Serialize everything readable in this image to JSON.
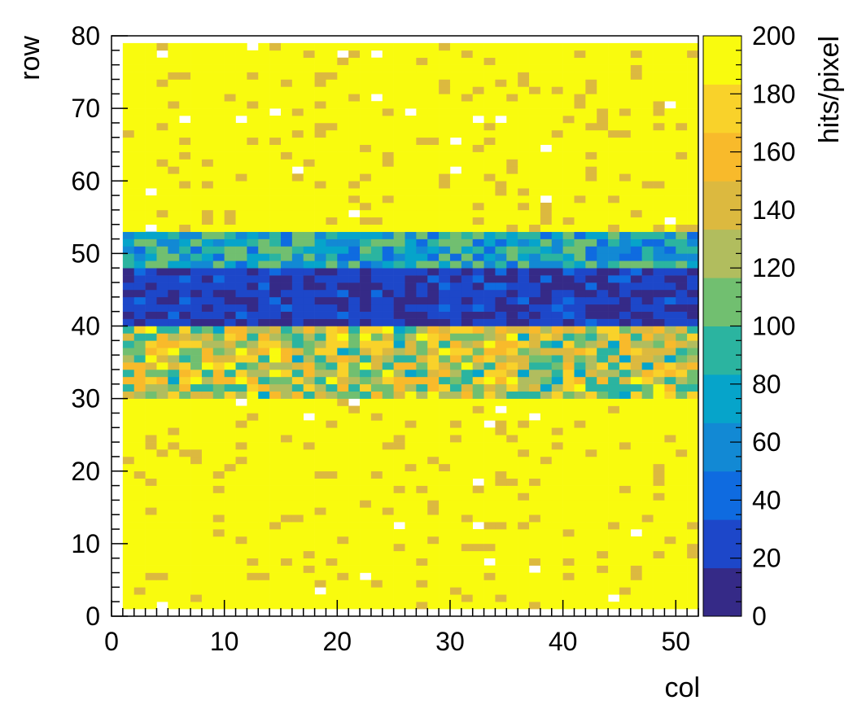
{
  "chart_data": {
    "type": "heatmap",
    "title": "",
    "xlabel": "col",
    "ylabel": "row",
    "zlabel": "hits/pixel",
    "xlim": [
      0,
      52
    ],
    "ylim": [
      0,
      80
    ],
    "zlim": [
      0,
      200
    ],
    "x_ticks": [
      "0",
      "10",
      "20",
      "30",
      "40",
      "50"
    ],
    "y_ticks": [
      "0",
      "10",
      "20",
      "30",
      "40",
      "50",
      "60",
      "70",
      "80"
    ],
    "z_ticks": [
      "0",
      "20",
      "40",
      "60",
      "80",
      "100",
      "120",
      "140",
      "160",
      "180",
      "200"
    ],
    "cols": [
      1,
      51
    ],
    "rows": [
      1,
      78
    ],
    "description_of_structure": {
      "background_value": 200,
      "band_core_rows": [
        40,
        47
      ],
      "band_core_value": 20,
      "band_upper_transition_rows": [
        48,
        52
      ],
      "band_upper_transition_value": 75,
      "band_lower_rows": [
        30,
        39
      ],
      "band_lower_value": 135
    },
    "colormap": [
      "#352a87",
      "#1d47c9",
      "#0f6be0",
      "#1289d4",
      "#06a4ca",
      "#2bb4a0",
      "#71bf70",
      "#b1bd5e",
      "#dcb93f",
      "#f8ba2b",
      "#f9d22a",
      "#f9fb0e"
    ]
  }
}
